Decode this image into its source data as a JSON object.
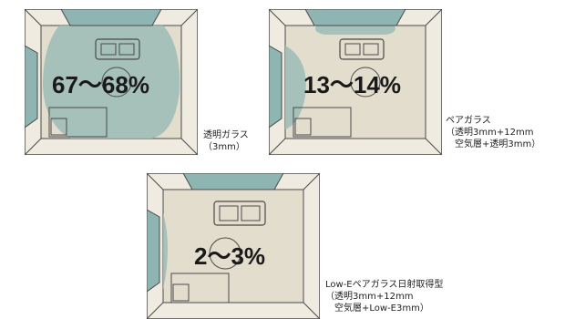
{
  "rooms": [
    {
      "id": "single-glass",
      "percent": "67〜68%",
      "caption": [
        "透明ガラス",
        "（3mm）"
      ]
    },
    {
      "id": "pair-glass",
      "percent": "13〜14%",
      "caption": [
        "ペアガラス",
        "（透明3mm+12mm",
        "　空気層+透明3mm）"
      ]
    },
    {
      "id": "low-e-pair-glass",
      "percent": "2〜3%",
      "caption": [
        "Low-Eペアガラス日射取得型",
        "（透明3mm+12mm",
        "　空気層+Low-E3mm）"
      ]
    }
  ],
  "colors": {
    "floor": "#e3ddcd",
    "wall": "#efebe0",
    "outline": "#4a4a4a",
    "heat": "#9fbdb8",
    "window": "#8fb5b2"
  }
}
